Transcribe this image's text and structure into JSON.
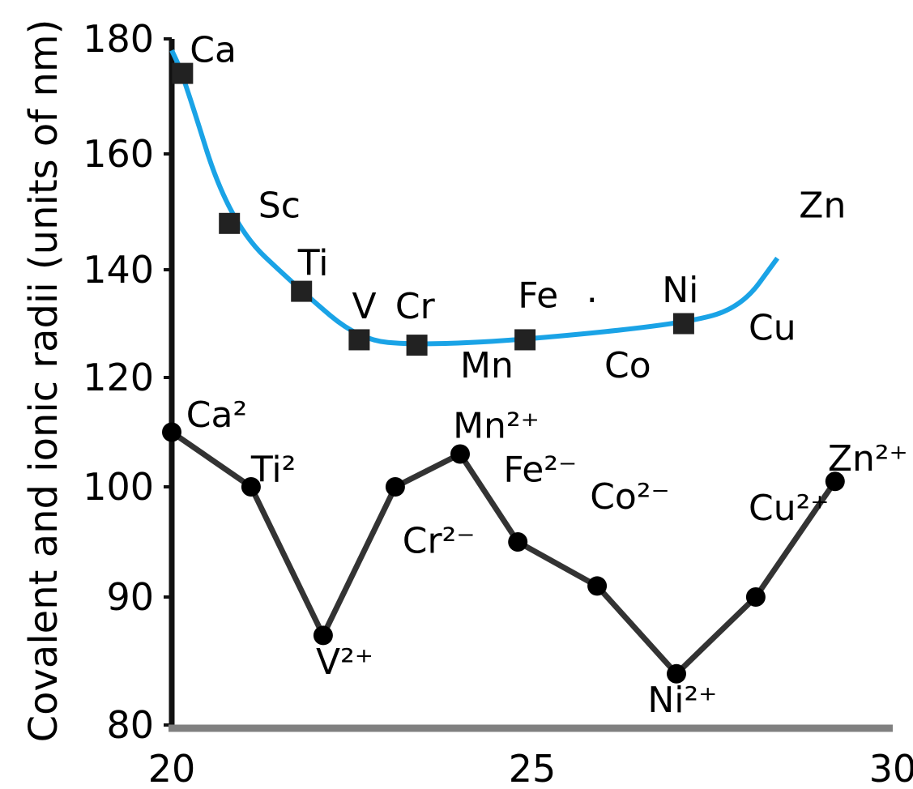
{
  "chart_data": {
    "type": "line",
    "ylabel": "Covalent and ionic radii (units of nm)",
    "xlabel": "",
    "x_ticks": [
      "20",
      "25",
      "30"
    ],
    "y_ticks": [
      "80",
      "90",
      "100",
      "120",
      "140",
      "160",
      "180"
    ],
    "series": [
      {
        "color": "#1aa3e6",
        "marker": "square",
        "points": [
          {
            "label": "Ca",
            "x": 20.15,
            "y": 174
          },
          {
            "label": "Sc",
            "x": 20.8,
            "y": 148
          },
          {
            "label": "Ti",
            "x": 21.8,
            "y": 136
          },
          {
            "label": "V",
            "x": 22.6,
            "y": 127
          },
          {
            "label": "Cr",
            "x": 23.4,
            "y": 126
          },
          {
            "label": "Mn",
            "x": 24.2,
            "y": null
          },
          {
            "label": "Fe",
            "x": 24.9,
            "y": 127
          },
          {
            "label": "Co",
            "x": 26.2,
            "y": null
          },
          {
            "label": "Ni",
            "x": 27.1,
            "y": 130
          },
          {
            "label": "Cu",
            "x": 27.8,
            "y": null
          },
          {
            "label": "Zn",
            "x": 28.4,
            "y": null
          }
        ]
      },
      {
        "color": "#333333",
        "marker": "circle",
        "points": [
          {
            "label": "Ca2",
            "x": 20.0,
            "y": 110
          },
          {
            "label": "Ti2",
            "x": 21.1,
            "y": 100
          },
          {
            "label": "V2+",
            "x": 22.1,
            "y": 87
          },
          {
            "label": "Cr2-",
            "x": 23.1,
            "y": 100
          },
          {
            "label": "Mn2+",
            "x": 24.0,
            "y": 106
          },
          {
            "label": "Fe2-",
            "x": 24.8,
            "y": 95
          },
          {
            "label": "Co2-",
            "x": 25.9,
            "y": 91
          },
          {
            "label": "Ni2+",
            "x": 27.0,
            "y": 84
          },
          {
            "label": "Cu2+",
            "x": 28.1,
            "y": 90
          },
          {
            "label": "Zn2+",
            "x": 29.2,
            "y": 101
          }
        ]
      }
    ]
  },
  "series_labels": {
    "covalent": [
      {
        "text": "Ca",
        "x": 20.25,
        "y": 176
      },
      {
        "text": "Sc",
        "x": 21.2,
        "y": 149
      },
      {
        "text": "Ti",
        "x": 21.75,
        "y": 139
      },
      {
        "text": "V",
        "x": 22.5,
        "y": 131
      },
      {
        "text": "Cr",
        "x": 23.1,
        "y": 131
      },
      {
        "text": "Mn",
        "x": 24.0,
        "y": 120
      },
      {
        "text": "Fe",
        "x": 24.8,
        "y": 133
      },
      {
        "text": "Co",
        "x": 26.0,
        "y": 120
      },
      {
        "text": "Ni",
        "x": 26.8,
        "y": 134
      },
      {
        "text": "Cu",
        "x": 28.0,
        "y": 127
      },
      {
        "text": "Zn",
        "x": 28.7,
        "y": 149
      }
    ],
    "ionic": [
      {
        "text": "Ca²",
        "x": 20.2,
        "y": 111
      },
      {
        "text": "Ti²",
        "x": 21.1,
        "y": 101
      },
      {
        "text": "V²⁺",
        "x": 22.0,
        "y": 84
      },
      {
        "text": "Cr²⁻",
        "x": 23.2,
        "y": 94
      },
      {
        "text": "Mn²⁺",
        "x": 23.9,
        "y": 109
      },
      {
        "text": "Fe²⁻",
        "x": 24.6,
        "y": 101
      },
      {
        "text": "Co²⁻",
        "x": 25.8,
        "y": 98
      },
      {
        "text": "Ni²⁺",
        "x": 26.6,
        "y": 81
      },
      {
        "text": "Cu²⁺",
        "x": 28.0,
        "y": 97
      },
      {
        "text": "Zn²⁺",
        "x": 29.1,
        "y": 103
      }
    ]
  },
  "mark": {
    "text": ".",
    "x": 25.75,
    "y": 134
  }
}
